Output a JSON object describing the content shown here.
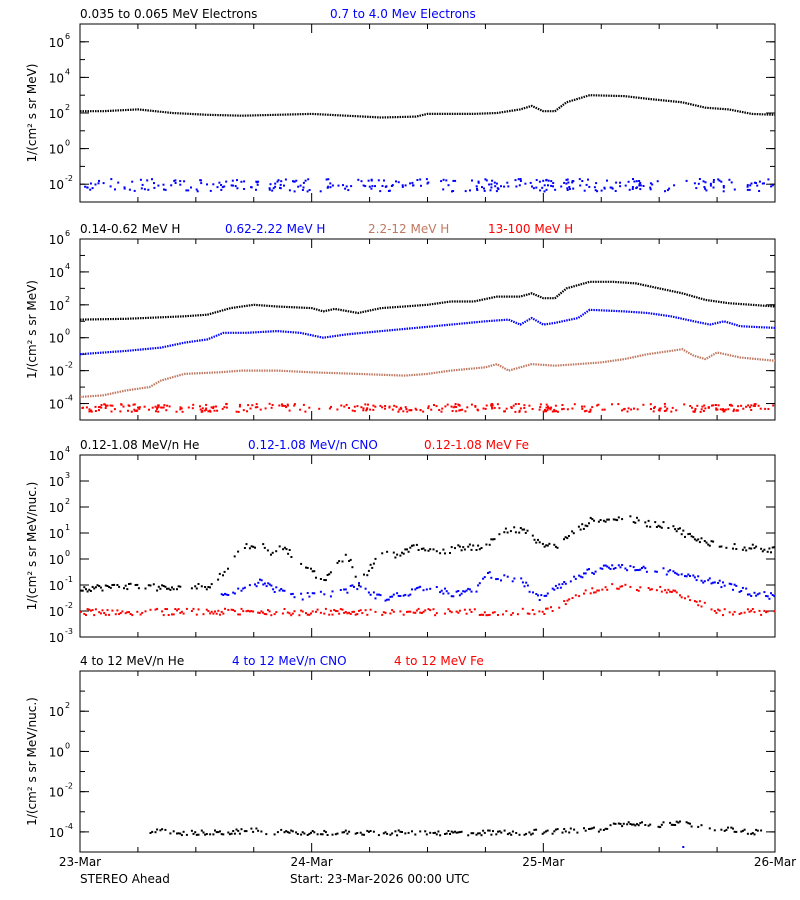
{
  "figure": {
    "spacecraft": "STEREO Ahead",
    "start_text": "Start: 23-Mar-2026 00:00 UTC",
    "x_ticks": [
      "23-Mar",
      "24-Mar",
      "25-Mar",
      "26-Mar"
    ]
  },
  "colors": {
    "black": "#000000",
    "blue": "#0000ff",
    "tan": "#c07860",
    "red": "#ff0000"
  },
  "chart_data": [
    {
      "type": "scatter",
      "ylabel": "1/(cm² s sr MeV)",
      "x_unit": "days since 23-Mar-2026 00:00 UTC",
      "xlim": [
        0,
        3
      ],
      "ylim_log10": [
        -3,
        7
      ],
      "y_ticks": [
        {
          "exp": 6,
          "label": "10",
          "sup": "6"
        },
        {
          "exp": 4,
          "label": "10",
          "sup": "4"
        },
        {
          "exp": 2,
          "label": "10",
          "sup": "2"
        },
        {
          "exp": 0,
          "label": "10",
          "sup": "0"
        },
        {
          "exp": -2,
          "label": "10",
          "sup": "-2"
        }
      ],
      "series": [
        {
          "name": "0.035 to 0.065 MeV Electrons",
          "color": "#000000",
          "style": "line",
          "points": [
            [
              0,
              2.1
            ],
            [
              0.1,
              2.1
            ],
            [
              0.25,
              2.2
            ],
            [
              0.4,
              2.0
            ],
            [
              0.55,
              1.9
            ],
            [
              0.7,
              1.85
            ],
            [
              0.85,
              1.9
            ],
            [
              1.0,
              1.95
            ],
            [
              1.15,
              1.85
            ],
            [
              1.3,
              1.75
            ],
            [
              1.45,
              1.8
            ],
            [
              1.5,
              1.95
            ],
            [
              1.6,
              1.95
            ],
            [
              1.7,
              1.95
            ],
            [
              1.8,
              2.0
            ],
            [
              1.9,
              2.2
            ],
            [
              1.95,
              2.4
            ],
            [
              2.0,
              2.1
            ],
            [
              2.05,
              2.1
            ],
            [
              2.1,
              2.6
            ],
            [
              2.2,
              3.0
            ],
            [
              2.35,
              2.95
            ],
            [
              2.45,
              2.8
            ],
            [
              2.6,
              2.6
            ],
            [
              2.7,
              2.3
            ],
            [
              2.8,
              2.2
            ],
            [
              2.9,
              1.95
            ],
            [
              3.0,
              1.9
            ]
          ]
        },
        {
          "name": "0.7 to 4.0 Mev Electrons",
          "color": "#0000ff",
          "style": "noise",
          "base": -2.0,
          "spread": 0.35,
          "count": 320
        }
      ]
    },
    {
      "type": "scatter",
      "ylabel": "1/(cm² s sr MeV)",
      "x_unit": "days since 23-Mar-2026 00:00 UTC",
      "xlim": [
        0,
        3
      ],
      "ylim_log10": [
        -5,
        6
      ],
      "y_ticks": [
        {
          "exp": 6,
          "label": "10",
          "sup": "6"
        },
        {
          "exp": 4,
          "label": "10",
          "sup": "4"
        },
        {
          "exp": 2,
          "label": "10",
          "sup": "2"
        },
        {
          "exp": 0,
          "label": "10",
          "sup": "0"
        },
        {
          "exp": -2,
          "label": "10",
          "sup": "-2"
        },
        {
          "exp": -4,
          "label": "10",
          "sup": "-4"
        }
      ],
      "series": [
        {
          "name": "0.14-0.62 MeV H",
          "color": "#000000",
          "style": "line",
          "points": [
            [
              0,
              1.1
            ],
            [
              0.2,
              1.15
            ],
            [
              0.45,
              1.3
            ],
            [
              0.55,
              1.4
            ],
            [
              0.65,
              1.8
            ],
            [
              0.75,
              2.0
            ],
            [
              0.85,
              1.9
            ],
            [
              1.0,
              1.8
            ],
            [
              1.05,
              1.6
            ],
            [
              1.1,
              1.75
            ],
            [
              1.2,
              1.5
            ],
            [
              1.3,
              1.8
            ],
            [
              1.4,
              1.9
            ],
            [
              1.5,
              2.0
            ],
            [
              1.6,
              2.2
            ],
            [
              1.7,
              2.2
            ],
            [
              1.8,
              2.5
            ],
            [
              1.9,
              2.5
            ],
            [
              1.95,
              2.7
            ],
            [
              2.0,
              2.4
            ],
            [
              2.05,
              2.4
            ],
            [
              2.1,
              3.0
            ],
            [
              2.2,
              3.4
            ],
            [
              2.3,
              3.4
            ],
            [
              2.4,
              3.3
            ],
            [
              2.5,
              3.0
            ],
            [
              2.6,
              2.7
            ],
            [
              2.7,
              2.3
            ],
            [
              2.8,
              2.1
            ],
            [
              2.9,
              2.0
            ],
            [
              3.0,
              1.9
            ]
          ]
        },
        {
          "name": "0.62-2.22 MeV H",
          "color": "#0000ff",
          "style": "line",
          "points": [
            [
              0,
              -1.0
            ],
            [
              0.2,
              -0.8
            ],
            [
              0.35,
              -0.6
            ],
            [
              0.45,
              -0.3
            ],
            [
              0.55,
              -0.1
            ],
            [
              0.62,
              0.3
            ],
            [
              0.72,
              0.3
            ],
            [
              0.85,
              0.4
            ],
            [
              0.95,
              0.3
            ],
            [
              1.05,
              0.0
            ],
            [
              1.15,
              0.2
            ],
            [
              1.3,
              0.4
            ],
            [
              1.45,
              0.6
            ],
            [
              1.6,
              0.8
            ],
            [
              1.75,
              1.0
            ],
            [
              1.85,
              1.1
            ],
            [
              1.9,
              0.8
            ],
            [
              1.95,
              1.2
            ],
            [
              2.0,
              0.8
            ],
            [
              2.05,
              0.9
            ],
            [
              2.15,
              1.2
            ],
            [
              2.2,
              1.7
            ],
            [
              2.35,
              1.6
            ],
            [
              2.45,
              1.5
            ],
            [
              2.55,
              1.3
            ],
            [
              2.65,
              1.0
            ],
            [
              2.72,
              0.8
            ],
            [
              2.78,
              1.0
            ],
            [
              2.85,
              0.7
            ],
            [
              3.0,
              0.6
            ]
          ]
        },
        {
          "name": "2.2-12 MeV H",
          "color": "#c07860",
          "style": "line",
          "points": [
            [
              0,
              -3.6
            ],
            [
              0.1,
              -3.5
            ],
            [
              0.2,
              -3.2
            ],
            [
              0.3,
              -3.0
            ],
            [
              0.35,
              -2.6
            ],
            [
              0.45,
              -2.2
            ],
            [
              0.6,
              -2.1
            ],
            [
              0.7,
              -2.0
            ],
            [
              0.85,
              -2.0
            ],
            [
              1.0,
              -2.1
            ],
            [
              1.2,
              -2.2
            ],
            [
              1.4,
              -2.3
            ],
            [
              1.5,
              -2.2
            ],
            [
              1.6,
              -2.0
            ],
            [
              1.75,
              -1.8
            ],
            [
              1.8,
              -1.6
            ],
            [
              1.85,
              -2.0
            ],
            [
              1.95,
              -1.6
            ],
            [
              2.05,
              -1.7
            ],
            [
              2.15,
              -1.6
            ],
            [
              2.25,
              -1.5
            ],
            [
              2.35,
              -1.3
            ],
            [
              2.45,
              -1.0
            ],
            [
              2.55,
              -0.8
            ],
            [
              2.6,
              -0.7
            ],
            [
              2.65,
              -1.1
            ],
            [
              2.7,
              -1.3
            ],
            [
              2.75,
              -0.9
            ],
            [
              2.85,
              -1.2
            ],
            [
              3.0,
              -1.4
            ]
          ]
        },
        {
          "name": "13-100 MeV H",
          "color": "#ff0000",
          "style": "noise",
          "base": -4.2,
          "spread": 0.25,
          "count": 360
        }
      ]
    },
    {
      "type": "scatter",
      "ylabel": "1/(cm² s sr MeV/nuc.)",
      "x_unit": "days since 23-Mar-2026 00:00 UTC",
      "xlim": [
        0,
        3
      ],
      "ylim_log10": [
        -3,
        4
      ],
      "y_ticks": [
        {
          "exp": 4,
          "label": "10",
          "sup": "4"
        },
        {
          "exp": 3,
          "label": "10",
          "sup": "3"
        },
        {
          "exp": 2,
          "label": "10",
          "sup": "2"
        },
        {
          "exp": 1,
          "label": "10",
          "sup": "1"
        },
        {
          "exp": 0,
          "label": "10",
          "sup": "0"
        },
        {
          "exp": -1,
          "label": "10",
          "sup": "-1"
        },
        {
          "exp": -2,
          "label": "10",
          "sup": "-2"
        },
        {
          "exp": -3,
          "label": "10",
          "sup": "-3"
        }
      ],
      "series": [
        {
          "name": "0.12-1.08 MeV/n He",
          "color": "#000000",
          "style": "sparse",
          "points": [
            [
              0,
              -1.1
            ],
            [
              0.2,
              -1.0
            ],
            [
              0.4,
              -1.1
            ],
            [
              0.55,
              -1.0
            ],
            [
              0.62,
              -0.5
            ],
            [
              0.7,
              0.5
            ],
            [
              0.78,
              0.6
            ],
            [
              0.82,
              0.3
            ],
            [
              0.88,
              0.5
            ],
            [
              0.95,
              -0.2
            ],
            [
              1.05,
              -0.8
            ],
            [
              1.15,
              0.2
            ],
            [
              1.2,
              -0.9
            ],
            [
              1.3,
              0.3
            ],
            [
              1.35,
              0.2
            ],
            [
              1.45,
              0.5
            ],
            [
              1.55,
              0.3
            ],
            [
              1.65,
              0.5
            ],
            [
              1.75,
              0.5
            ],
            [
              1.82,
              1.2
            ],
            [
              1.92,
              1.1
            ],
            [
              1.98,
              0.6
            ],
            [
              2.05,
              0.5
            ],
            [
              2.12,
              1.0
            ],
            [
              2.2,
              1.5
            ],
            [
              2.35,
              1.6
            ],
            [
              2.45,
              1.4
            ],
            [
              2.55,
              1.3
            ],
            [
              2.65,
              0.8
            ],
            [
              2.75,
              0.6
            ],
            [
              2.85,
              0.5
            ],
            [
              3.0,
              0.4
            ]
          ]
        },
        {
          "name": "0.12-1.08 MeV/n CNO",
          "color": "#0000ff",
          "style": "sparse",
          "points": [
            [
              0.6,
              -1.4
            ],
            [
              0.7,
              -1.1
            ],
            [
              0.78,
              -0.8
            ],
            [
              0.85,
              -1.2
            ],
            [
              0.95,
              -1.4
            ],
            [
              1.1,
              -1.3
            ],
            [
              1.2,
              -1.0
            ],
            [
              1.3,
              -1.5
            ],
            [
              1.4,
              -1.3
            ],
            [
              1.5,
              -1.0
            ],
            [
              1.6,
              -1.3
            ],
            [
              1.7,
              -1.2
            ],
            [
              1.75,
              -0.5
            ],
            [
              1.82,
              -0.7
            ],
            [
              1.9,
              -0.8
            ],
            [
              1.98,
              -1.5
            ],
            [
              2.05,
              -1.0
            ],
            [
              2.1,
              -0.9
            ],
            [
              2.15,
              -0.6
            ],
            [
              2.25,
              -0.3
            ],
            [
              2.4,
              -0.3
            ],
            [
              2.5,
              -0.4
            ],
            [
              2.6,
              -0.6
            ],
            [
              2.7,
              -0.8
            ],
            [
              2.8,
              -1.0
            ],
            [
              2.9,
              -1.3
            ],
            [
              3.0,
              -1.4
            ]
          ]
        },
        {
          "name": "0.12-1.08 MeV Fe",
          "color": "#ff0000",
          "style": "sparse",
          "points": [
            [
              0,
              -2.0
            ],
            [
              0.3,
              -2.0
            ],
            [
              0.6,
              -2.0
            ],
            [
              0.9,
              -2.0
            ],
            [
              1.2,
              -2.0
            ],
            [
              1.5,
              -2.0
            ],
            [
              1.8,
              -2.0
            ],
            [
              2.0,
              -2.0
            ],
            [
              2.1,
              -1.6
            ],
            [
              2.2,
              -1.2
            ],
            [
              2.3,
              -1.0
            ],
            [
              2.45,
              -1.1
            ],
            [
              2.55,
              -1.2
            ],
            [
              2.65,
              -1.6
            ],
            [
              2.75,
              -2.0
            ],
            [
              2.9,
              -2.0
            ],
            [
              3.0,
              -2.0
            ]
          ]
        }
      ]
    },
    {
      "type": "scatter",
      "ylabel": "1/(cm² s sr MeV/nuc.)",
      "x_unit": "days since 23-Mar-2026 00:00 UTC",
      "xlim": [
        0,
        3
      ],
      "ylim_log10": [
        -5,
        4
      ],
      "y_ticks": [
        {
          "exp": 2,
          "label": "10",
          "sup": "2"
        },
        {
          "exp": 0,
          "label": "10",
          "sup": "0"
        },
        {
          "exp": -2,
          "label": "10",
          "sup": "-2"
        },
        {
          "exp": -4,
          "label": "10",
          "sup": "-4"
        }
      ],
      "series": [
        {
          "name": "4 to 12 MeV/n He",
          "color": "#000000",
          "style": "sparse",
          "points": [
            [
              0.3,
              -3.9
            ],
            [
              0.45,
              -4.0
            ],
            [
              0.6,
              -4.0
            ],
            [
              0.75,
              -3.9
            ],
            [
              0.9,
              -4.0
            ],
            [
              1.05,
              -4.0
            ],
            [
              1.45,
              -4.0
            ],
            [
              1.65,
              -4.0
            ],
            [
              1.85,
              -4.0
            ],
            [
              2.1,
              -3.9
            ],
            [
              2.25,
              -3.8
            ],
            [
              2.3,
              -3.6
            ],
            [
              2.4,
              -3.5
            ],
            [
              2.5,
              -3.6
            ],
            [
              2.55,
              -3.5
            ],
            [
              2.65,
              -3.6
            ],
            [
              2.75,
              -3.8
            ],
            [
              2.85,
              -3.9
            ],
            [
              2.95,
              -4.0
            ]
          ]
        },
        {
          "name": "4 to 12 MeV/n CNO",
          "color": "#0000ff",
          "style": "sparse",
          "points": [
            [
              2.6,
              -4.7
            ]
          ]
        },
        {
          "name": "4 to 12 MeV Fe",
          "color": "#ff0000",
          "style": "sparse",
          "points": []
        }
      ]
    }
  ]
}
